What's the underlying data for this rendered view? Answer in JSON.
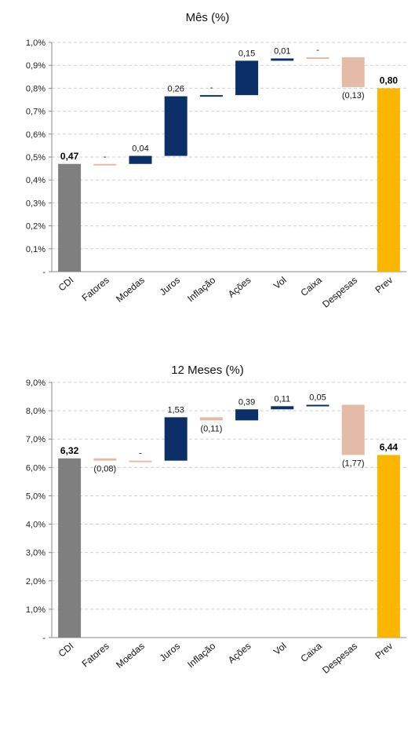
{
  "chart_data": [
    {
      "type": "bar",
      "subtype": "waterfall",
      "title": "Mês (%)",
      "ylim": [
        0,
        1.0
      ],
      "y_ticks": [
        "-",
        "0,1%",
        "0,2%",
        "0,3%",
        "0,4%",
        "0,5%",
        "0,6%",
        "0,7%",
        "0,8%",
        "0,9%",
        "1,0%"
      ],
      "grid": true,
      "categories": [
        "CDI",
        "Fatores",
        "Moedas",
        "Juros",
        "Inflação",
        "Ações",
        "Vol",
        "Caixa",
        "Despesas",
        "Prev"
      ],
      "bars": [
        {
          "category": "CDI",
          "kind": "total",
          "start": 0,
          "end": 0.47,
          "label": "0,47",
          "color": "#7f7f7f"
        },
        {
          "category": "Fatores",
          "kind": "delta",
          "start": 0.47,
          "end": 0.47,
          "label": "-",
          "color": "#e4bba7"
        },
        {
          "category": "Moedas",
          "kind": "delta",
          "start": 0.47,
          "end": 0.505,
          "label": "0,04",
          "color": "#0b2f66"
        },
        {
          "category": "Juros",
          "kind": "delta",
          "start": 0.505,
          "end": 0.765,
          "label": "0,26",
          "color": "#0b2f66"
        },
        {
          "category": "Inflação",
          "kind": "delta",
          "start": 0.77,
          "end": 0.77,
          "label": "-",
          "color": "#0b2f66"
        },
        {
          "category": "Ações",
          "kind": "delta",
          "start": 0.77,
          "end": 0.92,
          "label": "0,15",
          "color": "#0b2f66"
        },
        {
          "category": "Vol",
          "kind": "delta",
          "start": 0.92,
          "end": 0.93,
          "label": "0,01",
          "color": "#0b2f66"
        },
        {
          "category": "Caixa",
          "kind": "delta",
          "start": 0.935,
          "end": 0.935,
          "label": "-",
          "color": "#e4bba7"
        },
        {
          "category": "Despesas",
          "kind": "delta",
          "start": 0.935,
          "end": 0.805,
          "label": "(0,13)",
          "color": "#e4bba7"
        },
        {
          "category": "Prev",
          "kind": "total",
          "start": 0,
          "end": 0.8,
          "label": "0,80",
          "color": "#fbb600"
        }
      ]
    },
    {
      "type": "bar",
      "subtype": "waterfall",
      "title": "12 Meses (%)",
      "ylim": [
        0,
        9.0
      ],
      "y_ticks": [
        "-",
        "1,0%",
        "2,0%",
        "3,0%",
        "4,0%",
        "5,0%",
        "6,0%",
        "7,0%",
        "8,0%",
        "9,0%"
      ],
      "grid": true,
      "categories": [
        "CDI",
        "Fatores",
        "Moedas",
        "Juros",
        "Inflação",
        "Ações",
        "Vol",
        "Caixa",
        "Despesas",
        "Prev"
      ],
      "bars": [
        {
          "category": "CDI",
          "kind": "total",
          "start": 0,
          "end": 6.32,
          "label": "6,32",
          "color": "#7f7f7f"
        },
        {
          "category": "Fatores",
          "kind": "delta",
          "start": 6.32,
          "end": 6.24,
          "label": "(0,08)",
          "color": "#e4bba7"
        },
        {
          "category": "Moedas",
          "kind": "delta",
          "start": 6.24,
          "end": 6.24,
          "label": "-",
          "color": "#e4bba7"
        },
        {
          "category": "Juros",
          "kind": "delta",
          "start": 6.24,
          "end": 7.77,
          "label": "1,53",
          "color": "#0b2f66"
        },
        {
          "category": "Inflação",
          "kind": "delta",
          "start": 7.77,
          "end": 7.66,
          "label": "(0,11)",
          "color": "#e4bba7"
        },
        {
          "category": "Ações",
          "kind": "delta",
          "start": 7.66,
          "end": 8.05,
          "label": "0,39",
          "color": "#0b2f66"
        },
        {
          "category": "Vol",
          "kind": "delta",
          "start": 8.05,
          "end": 8.16,
          "label": "0,11",
          "color": "#0b2f66"
        },
        {
          "category": "Caixa",
          "kind": "delta",
          "start": 8.16,
          "end": 8.21,
          "label": "0,05",
          "color": "#0b2f66"
        },
        {
          "category": "Despesas",
          "kind": "delta",
          "start": 8.21,
          "end": 6.44,
          "label": "(1,77)",
          "color": "#e4bba7"
        },
        {
          "category": "Prev",
          "kind": "total",
          "start": 0,
          "end": 6.44,
          "label": "6,44",
          "color": "#fbb600"
        }
      ]
    }
  ]
}
